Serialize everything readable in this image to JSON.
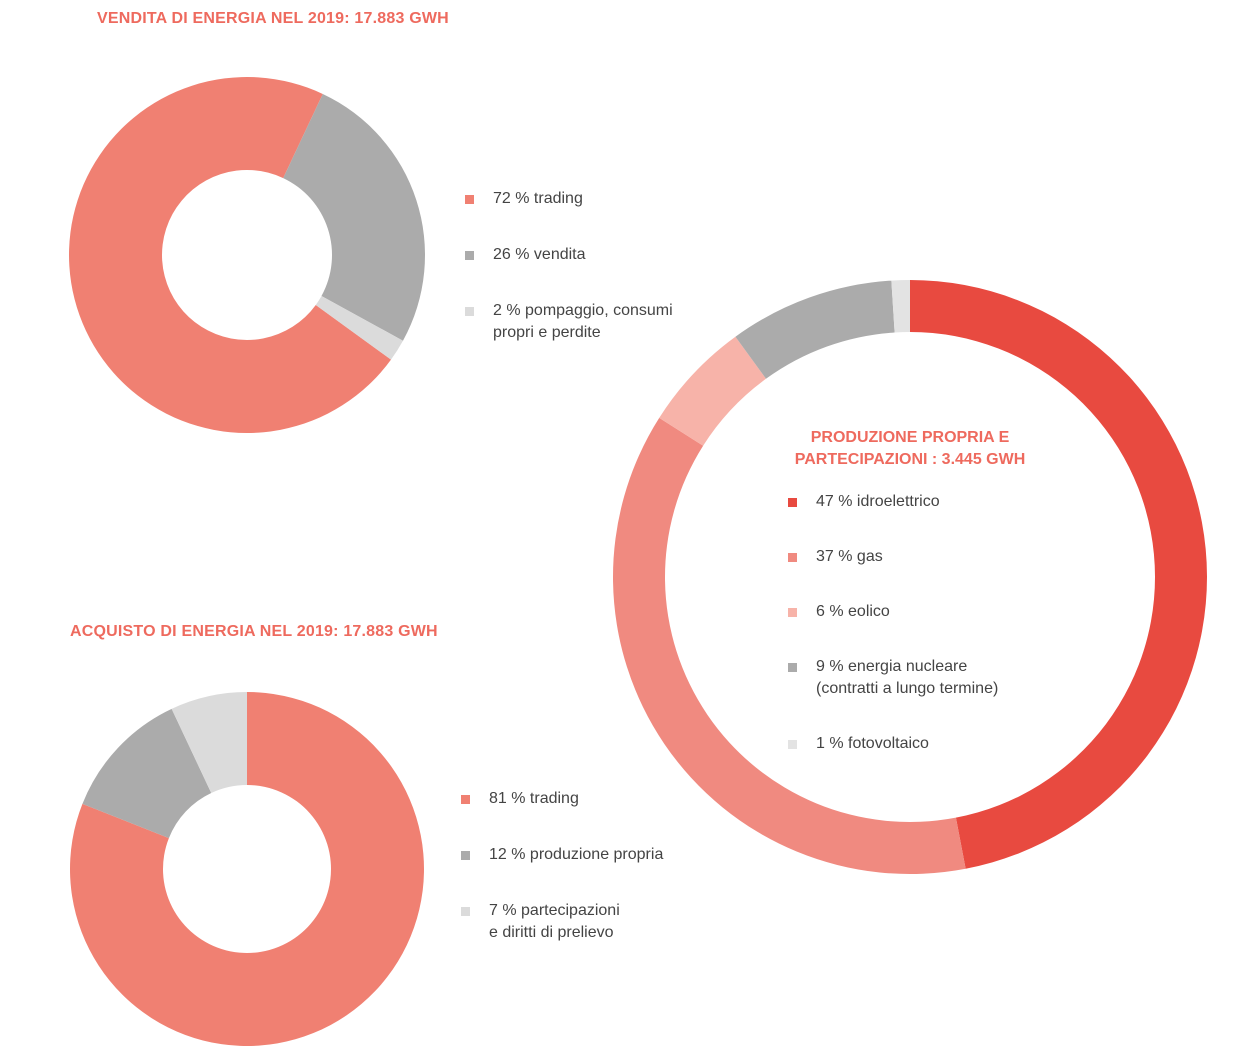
{
  "chart_data": [
    {
      "id": "vendita",
      "type": "pie",
      "title": "VENDITA DI ENERGIA NEL 2019: 17.883 GWH",
      "categories": [
        "72 % trading",
        "26 % vendita",
        "2 % pompaggio, consumi propri e perdite"
      ],
      "values": [
        72,
        26,
        2
      ],
      "colors": [
        "#f08072",
        "#ababab",
        "#dbdbdb"
      ]
    },
    {
      "id": "acquisto",
      "type": "pie",
      "title": "ACQUISTO DI ENERGIA NEL 2019: 17.883 GWH",
      "categories": [
        "81 % trading",
        "12 % produzione propria",
        "7 % partecipazioni e diritti di prelievo"
      ],
      "values": [
        81,
        12,
        7
      ],
      "colors": [
        "#f08072",
        "#ababab",
        "#dbdbdb"
      ]
    },
    {
      "id": "produzione",
      "type": "pie",
      "title": "PRODUZIONE PROPRIA E PARTECIPAZIONI : 3.445 GWH",
      "categories": [
        "47 % idroelettrico",
        "37 % gas",
        "6 % eolico",
        "9 % energia nucleare (contratti a lungo termine)",
        "1 % fotovoltaico"
      ],
      "values": [
        47,
        37,
        6,
        9,
        1
      ],
      "colors": [
        "#e84a40",
        "#f08a80",
        "#f7b3a9",
        "#ababab",
        "#e3e3e3"
      ]
    }
  ],
  "vendita": {
    "title": "VENDITA DI ENERGIA NEL 2019: 17.883 GWH",
    "legend": [
      {
        "lines": [
          "72 % trading"
        ],
        "color": "#f08072"
      },
      {
        "lines": [
          "26 % vendita"
        ],
        "color": "#ababab"
      },
      {
        "lines": [
          "2 % pompaggio, consumi",
          "propri e perdite"
        ],
        "color": "#dbdbdb"
      }
    ]
  },
  "acquisto": {
    "title": "ACQUISTO DI ENERGIA NEL 2019: 17.883 GWH",
    "legend": [
      {
        "lines": [
          "81 % trading"
        ],
        "color": "#f08072"
      },
      {
        "lines": [
          "12 % produzione propria"
        ],
        "color": "#ababab"
      },
      {
        "lines": [
          "7 % partecipazioni",
          "e diritti di prelievo"
        ],
        "color": "#dbdbdb"
      }
    ]
  },
  "produzione": {
    "title_lines": [
      "PRODUZIONE PROPRIA E",
      "PARTECIPAZIONI : 3.445 GWH"
    ],
    "legend": [
      {
        "lines": [
          "47 % idroelettrico"
        ],
        "color": "#e84a40"
      },
      {
        "lines": [
          "37 % gas"
        ],
        "color": "#f08a80"
      },
      {
        "lines": [
          "6 % eolico"
        ],
        "color": "#f7b3a9"
      },
      {
        "lines": [
          "9 % energia nucleare",
          "(contratti a lungo termine)"
        ],
        "color": "#ababab"
      },
      {
        "lines": [
          "1 % fotovoltaico"
        ],
        "color": "#e3e3e3"
      }
    ]
  }
}
